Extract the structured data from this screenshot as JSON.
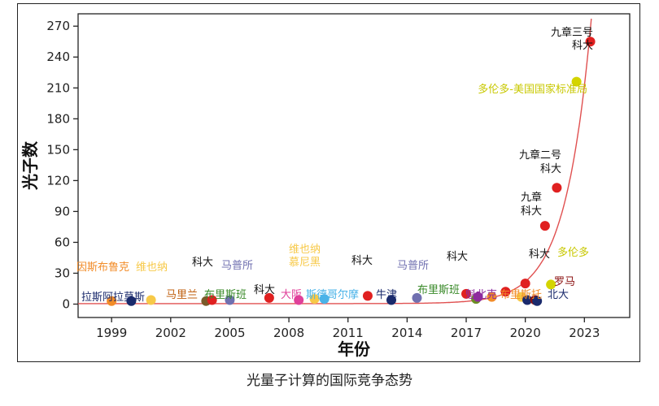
{
  "caption": "光量子计算的国际竞争态势",
  "chart_data": {
    "type": "scatter",
    "xlabel": "年份",
    "ylabel": "光子数",
    "xlim": [
      1997.3,
      2025.3
    ],
    "ylim": [
      -13,
      282
    ],
    "xticks": [
      "1999",
      "2002",
      "2005",
      "2008",
      "2011",
      "2014",
      "2017",
      "2020",
      "2023"
    ],
    "xtick_values": [
      1999,
      2002,
      2005,
      2008,
      2011,
      2014,
      2017,
      2020,
      2023
    ],
    "yticks": [
      "0",
      "30",
      "60",
      "90",
      "120",
      "150",
      "180",
      "210",
      "240",
      "270"
    ],
    "ytick_values": [
      0,
      30,
      60,
      90,
      120,
      150,
      180,
      210,
      240,
      270
    ],
    "grid": false,
    "trend_curve": {
      "color": "#e05050",
      "description": "exponential fit"
    },
    "points": [
      {
        "x": 1999.0,
        "y": 3,
        "color": "#f28c28"
      },
      {
        "x": 2000.0,
        "y": 3,
        "color": "#1a2a6c"
      },
      {
        "x": 2001.0,
        "y": 4,
        "color": "#f7c948"
      },
      {
        "x": 2003.8,
        "y": 3,
        "color": "#7a5a2a"
      },
      {
        "x": 2004.1,
        "y": 4,
        "color": "#e02020"
      },
      {
        "x": 2005.0,
        "y": 4,
        "color": "#7070b0"
      },
      {
        "x": 2007.0,
        "y": 6,
        "color": "#e02020"
      },
      {
        "x": 2008.5,
        "y": 4,
        "color": "#e0409a"
      },
      {
        "x": 2009.3,
        "y": 5,
        "color": "#f7c948"
      },
      {
        "x": 2009.8,
        "y": 5,
        "color": "#4ab3e8"
      },
      {
        "x": 2012.0,
        "y": 8,
        "color": "#e02020"
      },
      {
        "x": 2013.2,
        "y": 4,
        "color": "#1a2a6c"
      },
      {
        "x": 2014.5,
        "y": 6,
        "color": "#7070b0"
      },
      {
        "x": 2017.0,
        "y": 10,
        "color": "#e02020"
      },
      {
        "x": 2017.5,
        "y": 5,
        "color": "#6b8e23"
      },
      {
        "x": 2017.6,
        "y": 7,
        "color": "#8e2a9e"
      },
      {
        "x": 2018.3,
        "y": 7,
        "color": "#f28c28"
      },
      {
        "x": 2019.0,
        "y": 12,
        "color": "#e02020"
      },
      {
        "x": 2019.8,
        "y": 7,
        "color": "#f7c948"
      },
      {
        "x": 2020.0,
        "y": 20,
        "color": "#e02020"
      },
      {
        "x": 2020.1,
        "y": 4,
        "color": "#1a2a6c"
      },
      {
        "x": 2020.5,
        "y": 4,
        "color": "#8b1010"
      },
      {
        "x": 2020.6,
        "y": 3,
        "color": "#1a2a6c"
      },
      {
        "x": 2021.3,
        "y": 19,
        "color": "#d4d400"
      },
      {
        "x": 2021.0,
        "y": 76,
        "color": "#e02020"
      },
      {
        "x": 2021.6,
        "y": 113,
        "color": "#e02020"
      },
      {
        "x": 2022.6,
        "y": 216,
        "color": "#d4d400"
      },
      {
        "x": 2023.3,
        "y": 255,
        "color": "#e02020"
      }
    ],
    "annotations": [
      {
        "text": "因斯布鲁克",
        "color": "#f28c28"
      },
      {
        "text": "维也纳",
        "color": "#f7c948"
      },
      {
        "text": "拉斯阿拉莫斯",
        "color": "#1a2a6c"
      },
      {
        "text": "科大",
        "color": "#111111"
      },
      {
        "text": "马普所",
        "color": "#7070b0"
      },
      {
        "text": "马里兰",
        "color": "#c06010"
      },
      {
        "text": "布里斯班",
        "color": "#3a8a2a"
      },
      {
        "text": "科大",
        "color": "#111111"
      },
      {
        "text": "大阪",
        "color": "#e0409a"
      },
      {
        "text": "维也纳",
        "color": "#f7c948"
      },
      {
        "text": "慕尼黑",
        "color": "#f7c948"
      },
      {
        "text": "斯德哥尔摩",
        "color": "#4ab3e8"
      },
      {
        "text": "科大",
        "color": "#111111"
      },
      {
        "text": "牛津",
        "color": "#1a2a6c"
      },
      {
        "text": "马普所",
        "color": "#7070b0"
      },
      {
        "text": "布里斯班",
        "color": "#3a8a2a"
      },
      {
        "text": "科大",
        "color": "#111111"
      },
      {
        "text": "魁北克",
        "color": "#8e2a9e"
      },
      {
        "text": "布里斯托",
        "color": "#f28c28"
      },
      {
        "text": "科大",
        "color": "#111111"
      },
      {
        "text": "北大",
        "color": "#1a2a6c"
      },
      {
        "text": "罗马",
        "color": "#8b1010"
      },
      {
        "text": "多伦多",
        "color": "#c8c800"
      },
      {
        "text": "九章",
        "color": "#111111"
      },
      {
        "text": "科大",
        "color": "#111111"
      },
      {
        "text": "九章二号",
        "color": "#111111"
      },
      {
        "text": "科大",
        "color": "#111111"
      },
      {
        "text": "多伦多-美国国家标准局",
        "color": "#c8c800"
      },
      {
        "text": "九章三号",
        "color": "#111111"
      },
      {
        "text": "科大",
        "color": "#111111"
      }
    ]
  }
}
